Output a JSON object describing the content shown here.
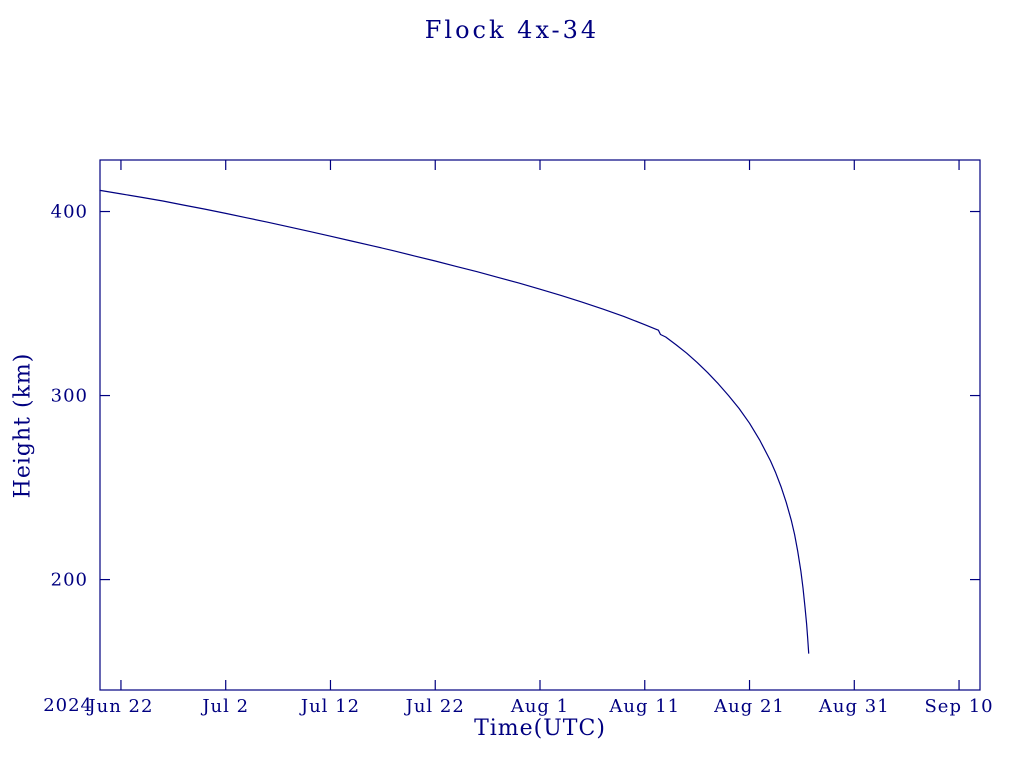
{
  "page": {
    "background": "#ffffff",
    "accent_color": "#000080"
  },
  "chart_data": {
    "type": "line",
    "title": "Flock 4x-34",
    "xlabel": "Time(UTC)",
    "ylabel": "Height (km)",
    "color": "#000080",
    "grid": false,
    "legend": "none",
    "x_axis": {
      "year_label": "2024",
      "unit": "days since 2024 Jun 20 (UTC)",
      "range_days": [
        0,
        84
      ],
      "tick_days": [
        2,
        12,
        22,
        32,
        42,
        52,
        62,
        72,
        82
      ],
      "tick_labels": [
        "Jun 22",
        "Jul 2",
        "Jul 12",
        "Jul 22",
        "Aug 1",
        "Aug 11",
        "Aug 21",
        "Aug 31",
        "Sep 10"
      ]
    },
    "y_axis": {
      "range": [
        140,
        428
      ],
      "tick_values": [
        200,
        300,
        400
      ],
      "tick_labels": [
        "200",
        "300",
        "400"
      ]
    },
    "series": [
      {
        "name": "orbital-height-km",
        "points": [
          [
            0,
            411.5
          ],
          [
            2,
            409.6
          ],
          [
            4,
            407.7
          ],
          [
            6,
            405.7
          ],
          [
            8,
            403.5
          ],
          [
            10,
            401.3
          ],
          [
            12,
            399.0
          ],
          [
            14,
            396.6
          ],
          [
            16,
            394.2
          ],
          [
            18,
            391.7
          ],
          [
            20,
            389.2
          ],
          [
            22,
            386.6
          ],
          [
            24,
            384.0
          ],
          [
            26,
            381.4
          ],
          [
            28,
            378.7
          ],
          [
            30,
            375.9
          ],
          [
            32,
            373.1
          ],
          [
            34,
            370.2
          ],
          [
            36,
            367.3
          ],
          [
            38,
            364.2
          ],
          [
            40,
            361.1
          ],
          [
            42,
            357.8
          ],
          [
            44,
            354.4
          ],
          [
            46,
            350.8
          ],
          [
            48,
            347.0
          ],
          [
            50,
            343.0
          ],
          [
            52,
            338.5
          ],
          [
            53,
            336.2
          ],
          [
            53.3,
            335.5
          ],
          [
            53.5,
            333.2
          ],
          [
            54,
            331.8
          ],
          [
            55,
            327.5
          ],
          [
            56,
            323.0
          ],
          [
            57,
            318.0
          ],
          [
            58,
            312.5
          ],
          [
            59,
            306.5
          ],
          [
            60,
            300.0
          ],
          [
            61,
            293.0
          ],
          [
            62,
            285.0
          ],
          [
            63,
            275.5
          ],
          [
            64,
            264.5
          ],
          [
            64.5,
            258.0
          ],
          [
            65,
            250.5
          ],
          [
            65.5,
            242.0
          ],
          [
            66,
            232.0
          ],
          [
            66.3,
            224.5
          ],
          [
            66.6,
            215.5
          ],
          [
            66.9,
            204.5
          ],
          [
            67.1,
            195.5
          ],
          [
            67.3,
            185.0
          ],
          [
            67.45,
            176.0
          ],
          [
            67.55,
            168.0
          ],
          [
            67.65,
            160.0
          ]
        ]
      }
    ]
  }
}
